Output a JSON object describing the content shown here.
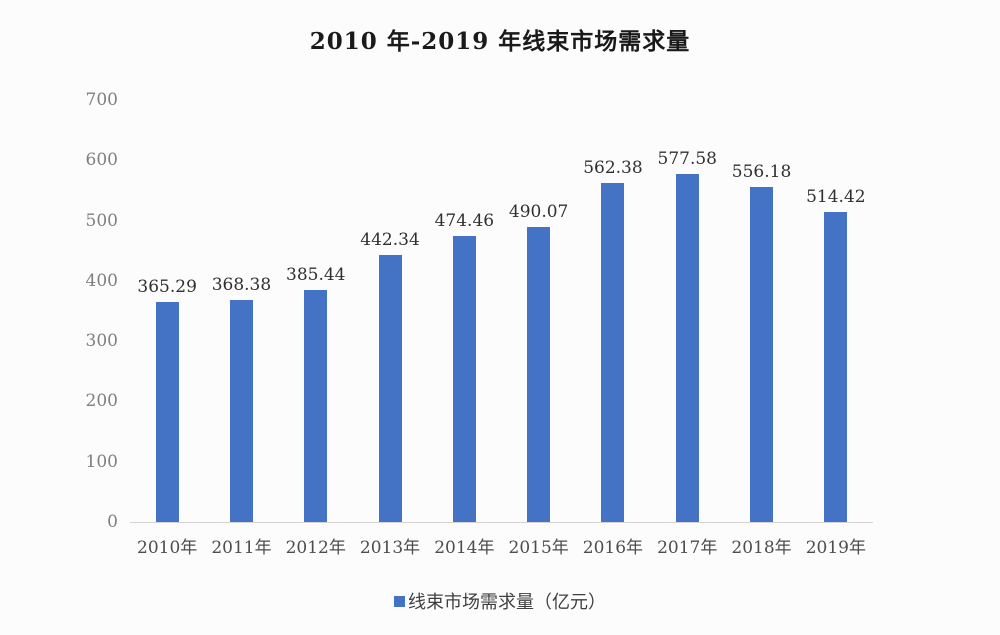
{
  "chart_data": {
    "type": "bar",
    "title": "2010 年-2019 年线束市场需求量",
    "categories": [
      "2010年",
      "2011年",
      "2012年",
      "2013年",
      "2014年",
      "2015年",
      "2016年",
      "2017年",
      "2018年",
      "2019年"
    ],
    "values": [
      365.29,
      368.38,
      385.44,
      442.34,
      474.46,
      490.07,
      562.38,
      577.58,
      556.18,
      514.42
    ],
    "data_labels": [
      "365.29",
      "368.38",
      "385.44",
      "442.34",
      "474.46",
      "490.07",
      "562.38",
      "577.58",
      "556.18",
      "514.42"
    ],
    "series_name": "线束市场需求量（亿元）",
    "xlabel": "",
    "ylabel": "",
    "ylim": [
      0,
      700
    ],
    "yticks": [
      0,
      100,
      200,
      300,
      400,
      500,
      600,
      700
    ],
    "grid": false,
    "legend_position": "bottom",
    "bar_color": "#4472C4"
  },
  "legend": {
    "label": "线束市场需求量（亿元）",
    "marker_color": "#4472C4"
  },
  "colors": {
    "background": "#fcfcfc",
    "axis_line": "#d2d2d2",
    "y_tick_text": "#7f7f7f",
    "x_tick_text": "#4d4d4d",
    "data_label_text": "#303030"
  }
}
